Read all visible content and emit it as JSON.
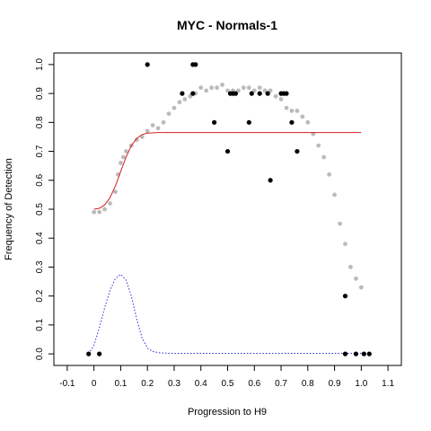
{
  "chart_data": {
    "type": "scatter",
    "title": "MYC - Normals-1",
    "xlabel": "Progression to H9",
    "ylabel": "Frequency of Detection",
    "xlim": [
      -0.15,
      1.15
    ],
    "ylim": [
      -0.04,
      1.04
    ],
    "x_ticks": [
      "-0.1",
      "0",
      "0.1",
      "0.2",
      "0.3",
      "0.4",
      "0.5",
      "0.6",
      "0.7",
      "0.8",
      "0.9",
      "1.0",
      "1.1"
    ],
    "x_tick_values": [
      -0.1,
      0,
      0.1,
      0.2,
      0.3,
      0.4,
      0.5,
      0.6,
      0.7,
      0.8,
      0.9,
      1.0,
      1.1
    ],
    "y_ticks": [
      "0.0",
      "0.1",
      "0.2",
      "0.3",
      "0.4",
      "0.5",
      "0.6",
      "0.7",
      "0.8",
      "0.9",
      "1.0"
    ],
    "y_tick_values": [
      0,
      0.1,
      0.2,
      0.3,
      0.4,
      0.5,
      0.6,
      0.7,
      0.8,
      0.9,
      1.0
    ],
    "grid": false,
    "legend": "none",
    "colors": {
      "smooth_points": "#bbbbbb",
      "observed_points": "#000000",
      "fit_line": "#d62020",
      "density_line": "#2a2ad8"
    },
    "series": [
      {
        "kind": "points",
        "color_key": "observed_points",
        "x": [
          -0.02,
          0.02,
          0.2,
          0.33,
          0.37,
          0.38,
          0.37,
          0.45,
          0.5,
          0.51,
          0.52,
          0.53,
          0.58,
          0.59,
          0.62,
          0.65,
          0.66,
          0.7,
          0.71,
          0.72,
          0.74,
          0.76,
          0.94,
          0.94,
          0.98,
          1.01,
          1.03
        ],
        "y": [
          0.0,
          0.0,
          1.0,
          0.9,
          0.9,
          1.0,
          1.0,
          0.8,
          0.7,
          0.9,
          0.9,
          0.9,
          0.8,
          0.9,
          0.9,
          0.9,
          0.6,
          0.9,
          0.9,
          0.9,
          0.8,
          0.7,
          0.2,
          0.0,
          0.0,
          0.0,
          0.0
        ]
      },
      {
        "kind": "smooth",
        "color_key": "smooth_points",
        "x": [
          0.0,
          0.02,
          0.04,
          0.06,
          0.08,
          0.09,
          0.1,
          0.11,
          0.12,
          0.14,
          0.16,
          0.18,
          0.2,
          0.22,
          0.24,
          0.26,
          0.28,
          0.3,
          0.32,
          0.34,
          0.36,
          0.38,
          0.4,
          0.42,
          0.44,
          0.46,
          0.48,
          0.5,
          0.52,
          0.54,
          0.56,
          0.58,
          0.6,
          0.62,
          0.64,
          0.66,
          0.68,
          0.7,
          0.72,
          0.74,
          0.76,
          0.78,
          0.8,
          0.82,
          0.84,
          0.86,
          0.88,
          0.9,
          0.92,
          0.94,
          0.96,
          0.98,
          1.0
        ],
        "y": [
          0.49,
          0.49,
          0.5,
          0.52,
          0.56,
          0.62,
          0.66,
          0.68,
          0.7,
          0.72,
          0.74,
          0.75,
          0.77,
          0.79,
          0.78,
          0.8,
          0.83,
          0.85,
          0.87,
          0.88,
          0.89,
          0.9,
          0.92,
          0.91,
          0.92,
          0.92,
          0.93,
          0.91,
          0.91,
          0.91,
          0.92,
          0.92,
          0.91,
          0.92,
          0.91,
          0.91,
          0.89,
          0.88,
          0.85,
          0.84,
          0.84,
          0.82,
          0.8,
          0.76,
          0.72,
          0.68,
          0.62,
          0.55,
          0.45,
          0.38,
          0.3,
          0.26,
          0.23
        ]
      },
      {
        "kind": "line",
        "color_key": "fit_line",
        "x": [
          0.0,
          0.02,
          0.04,
          0.06,
          0.08,
          0.1,
          0.12,
          0.14,
          0.16,
          0.18,
          0.2,
          0.24,
          0.3,
          0.4,
          0.6,
          0.8,
          1.0
        ],
        "y": [
          0.5,
          0.503,
          0.515,
          0.54,
          0.58,
          0.63,
          0.68,
          0.72,
          0.745,
          0.758,
          0.763,
          0.765,
          0.765,
          0.765,
          0.765,
          0.765,
          0.765
        ]
      },
      {
        "kind": "dotted",
        "color_key": "density_line",
        "x": [
          -0.02,
          0.0,
          0.02,
          0.04,
          0.06,
          0.08,
          0.1,
          0.12,
          0.14,
          0.16,
          0.18,
          0.2,
          0.22,
          0.25,
          0.3,
          0.5,
          0.7,
          0.9,
          1.0
        ],
        "y": [
          0.0,
          0.03,
          0.09,
          0.16,
          0.22,
          0.26,
          0.275,
          0.255,
          0.2,
          0.12,
          0.055,
          0.02,
          0.008,
          0.003,
          0.002,
          0.002,
          0.002,
          0.002,
          0.002
        ]
      }
    ]
  }
}
